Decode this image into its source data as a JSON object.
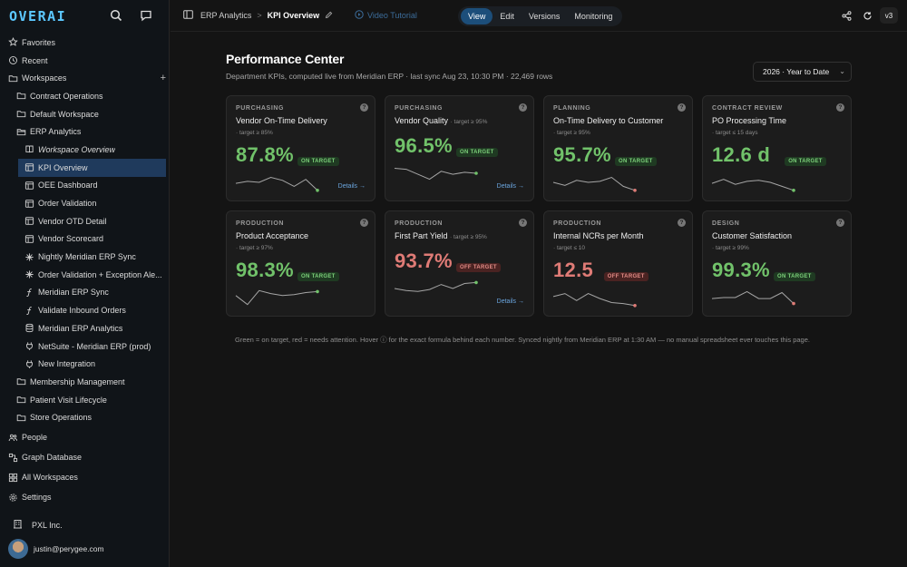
{
  "app": {
    "brand": "OVERAI"
  },
  "sidebar": {
    "items": [
      {
        "label": "Favorites",
        "icon": "star-icon",
        "indent": 0
      },
      {
        "label": "Recent",
        "icon": "clock-icon",
        "indent": 0
      },
      {
        "label": "Workspaces",
        "icon": "folder-icon",
        "indent": 0,
        "plus": "+"
      },
      {
        "label": "Contract Operations",
        "icon": "folder-icon",
        "indent": 1
      },
      {
        "label": "Default Workspace",
        "icon": "folder-icon",
        "indent": 1
      },
      {
        "label": "ERP Analytics",
        "icon": "folder-open-icon",
        "indent": 1
      },
      {
        "label": "Workspace Overview",
        "icon": "book-icon",
        "indent": 2,
        "italic": true
      },
      {
        "label": "KPI Overview",
        "icon": "dashboard-icon",
        "indent": 2,
        "active": true
      },
      {
        "label": "OEE Dashboard",
        "icon": "dashboard-icon",
        "indent": 2
      },
      {
        "label": "Order Validation",
        "icon": "dashboard-icon",
        "indent": 2
      },
      {
        "label": "Vendor OTD Detail",
        "icon": "dashboard-icon",
        "indent": 2
      },
      {
        "label": "Vendor Scorecard",
        "icon": "dashboard-icon",
        "indent": 2
      },
      {
        "label": "Nightly Meridian ERP Sync",
        "icon": "workflow-icon",
        "indent": 2
      },
      {
        "label": "Order Validation + Exception Ale...",
        "icon": "workflow-icon",
        "indent": 2
      },
      {
        "label": "Meridian ERP Sync",
        "icon": "function-icon",
        "indent": 2
      },
      {
        "label": "Validate Inbound Orders",
        "icon": "function-icon",
        "indent": 2
      },
      {
        "label": "Meridian ERP Analytics",
        "icon": "database-icon",
        "indent": 2
      },
      {
        "label": "NetSuite - Meridian ERP (prod)",
        "icon": "plug-icon",
        "indent": 2
      },
      {
        "label": "New Integration",
        "icon": "plug-icon",
        "indent": 2
      },
      {
        "label": "Membership Management",
        "icon": "folder-icon",
        "indent": 1
      },
      {
        "label": "Patient Visit Lifecycle",
        "icon": "folder-icon",
        "indent": 1
      },
      {
        "label": "Store Operations",
        "icon": "folder-icon",
        "indent": 1
      },
      {
        "label": "People",
        "icon": "people-icon",
        "indent": 0,
        "gap": true
      },
      {
        "label": "Graph Database",
        "icon": "graph-icon",
        "indent": 0,
        "gap": true
      },
      {
        "label": "All Workspaces",
        "icon": "grid-icon",
        "indent": 0,
        "gap": true
      },
      {
        "label": "Settings",
        "icon": "gear-icon",
        "indent": 0,
        "gap": true
      }
    ],
    "org": "PXL Inc.",
    "user_email": "justin@perygee.com"
  },
  "topbar": {
    "breadcrumb_parent": "ERP Analytics",
    "breadcrumb_sep": ">",
    "breadcrumb_current": "KPI Overview",
    "video_label": "Video Tutorial",
    "modes": [
      "View",
      "Edit",
      "Versions",
      "Monitoring"
    ],
    "active_mode": "View",
    "version": "v3"
  },
  "page": {
    "title": "Performance Center",
    "subtitle": "Department KPIs, computed live from Meridian ERP · last sync Aug 23, 10:30 PM · 22,469 rows",
    "period": "2026 · Year to Date",
    "footnote": "Green = on target, red = needs attention. Hover ⓘ for the exact formula behind each number. Synced nightly from Meridian ERP at 1:30 AM — no manual spreadsheet ever touches this page."
  },
  "colors": {
    "good": "#71c26a",
    "bad": "#df7b76",
    "accent": "#5cc8ff",
    "link": "#6aa5de"
  },
  "cards": [
    {
      "category": "PURCHASING",
      "name": "Vendor On-Time Delivery",
      "target": "· target ≥ 85%",
      "target_inline": false,
      "value": "87.8%",
      "status": "good",
      "badge": "ON TARGET",
      "details": "Details →",
      "spark": [
        0.45,
        0.55,
        0.5,
        0.75,
        0.6,
        0.3,
        0.65,
        0.1
      ],
      "end_color": "#71c26a"
    },
    {
      "category": "PURCHASING",
      "name": "Vendor Quality",
      "target": "· target ≥ 95%",
      "target_inline": true,
      "value": "96.5%",
      "status": "good",
      "badge": "ON TARGET",
      "details": "Details →",
      "spark": [
        0.75,
        0.7,
        0.45,
        0.2,
        0.6,
        0.45,
        0.55,
        0.5
      ],
      "end_color": "#71c26a"
    },
    {
      "category": "PLANNING",
      "name": "On-Time Delivery to Customer",
      "target": "· target ≥ 95%",
      "target_inline": false,
      "value": "95.7%",
      "status": "good",
      "badge": "ON TARGET",
      "details": "",
      "spark": [
        0.5,
        0.35,
        0.6,
        0.5,
        0.55,
        0.75,
        0.3,
        0.1
      ],
      "end_color": "#df7b76"
    },
    {
      "category": "CONTRACT REVIEW",
      "name": "PO Processing Time",
      "target": "· target ≤ 15 days",
      "target_inline": false,
      "value": "12.6 d",
      "status": "good",
      "badge": "ON TARGET",
      "details": "",
      "spark": [
        0.45,
        0.65,
        0.4,
        0.55,
        0.6,
        0.5,
        0.3,
        0.1
      ],
      "end_color": "#71c26a"
    },
    {
      "category": "PRODUCTION",
      "name": "Product Acceptance",
      "target": "· target ≥ 97%",
      "target_inline": false,
      "value": "98.3%",
      "status": "good",
      "badge": "ON TARGET",
      "details": "",
      "spark": [
        0.6,
        0.15,
        0.85,
        0.7,
        0.6,
        0.65,
        0.75,
        0.8
      ],
      "end_color": "#71c26a"
    },
    {
      "category": "PRODUCTION",
      "name": "First Part Yield",
      "target": "· target ≥ 95%",
      "target_inline": true,
      "value": "93.7%",
      "status": "bad",
      "badge": "OFF TARGET",
      "details": "Details →",
      "spark": [
        0.5,
        0.4,
        0.35,
        0.45,
        0.7,
        0.5,
        0.75,
        0.8
      ],
      "end_color": "#71c26a"
    },
    {
      "category": "PRODUCTION",
      "name": "Internal NCRs per Month",
      "target": "· target ≤ 10",
      "target_inline": false,
      "value": "12.5",
      "status": "bad",
      "badge": "OFF TARGET",
      "details": "",
      "spark": [
        0.55,
        0.7,
        0.35,
        0.7,
        0.45,
        0.25,
        0.2,
        0.1
      ],
      "end_color": "#df7b76"
    },
    {
      "category": "DESIGN",
      "name": "Customer Satisfaction",
      "target": "· target ≥ 99%",
      "target_inline": false,
      "value": "99.3%",
      "status": "good",
      "badge": "ON TARGET",
      "details": "",
      "spark": [
        0.45,
        0.5,
        0.5,
        0.8,
        0.45,
        0.45,
        0.75,
        0.2
      ],
      "end_color": "#df7b76"
    }
  ]
}
